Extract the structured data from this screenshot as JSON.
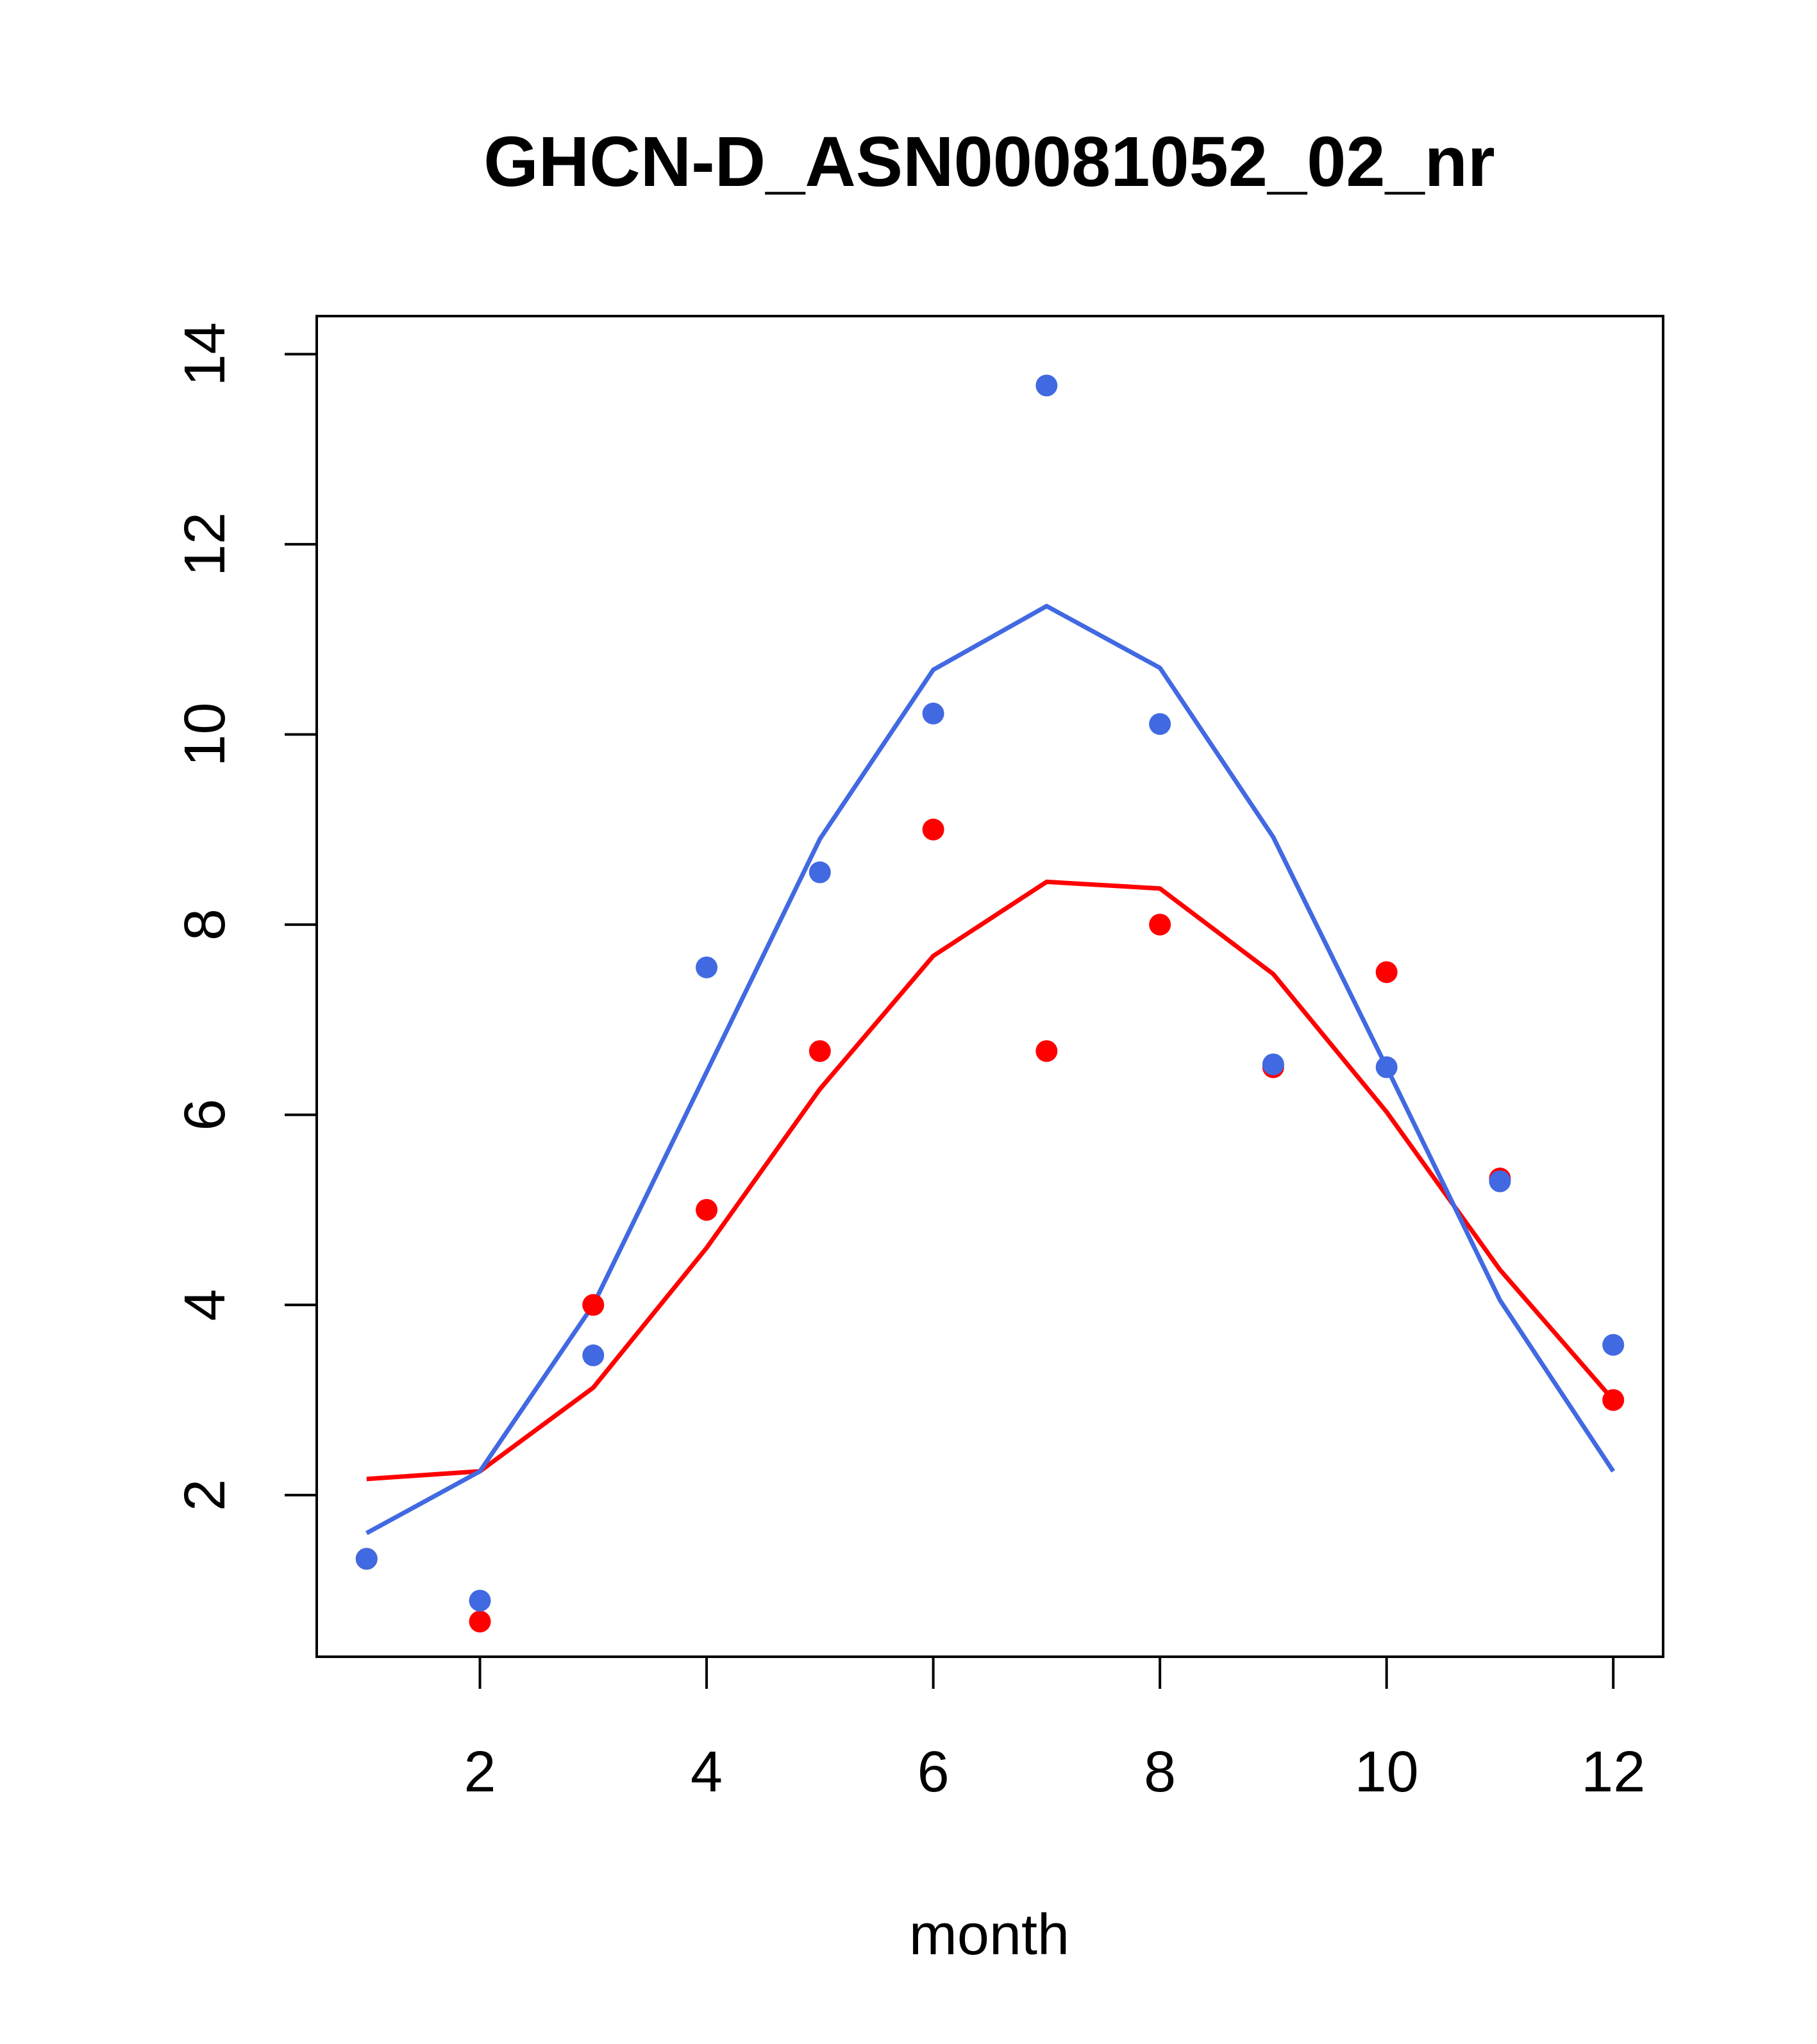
{
  "chart_data": {
    "type": "scatter",
    "title": "GHCN-D_ASN00081052_02_nr",
    "xlabel": "month",
    "ylabel": "",
    "xlim": [
      0.56,
      12.44
    ],
    "ylim": [
      0.3,
      14.4
    ],
    "x_ticks": [
      2,
      4,
      6,
      8,
      10,
      12
    ],
    "y_ticks": [
      2,
      4,
      6,
      8,
      10,
      12,
      14
    ],
    "grid": false,
    "colors": {
      "red": "#ff0000",
      "blue": "#4169e1"
    },
    "series": [
      {
        "color": "#ff0000",
        "points": [
          [
            1,
            1.33
          ],
          [
            2,
            0.67
          ],
          [
            3,
            4.0
          ],
          [
            4,
            5.0
          ],
          [
            5,
            6.67
          ],
          [
            6,
            9.0
          ],
          [
            7,
            6.67
          ],
          [
            8,
            8.0
          ],
          [
            9,
            6.5
          ],
          [
            10,
            7.5
          ],
          [
            11,
            5.33
          ],
          [
            12,
            3.0
          ]
        ],
        "line": [
          [
            1,
            2.17
          ],
          [
            2,
            2.25
          ],
          [
            3,
            3.13
          ],
          [
            4,
            4.6
          ],
          [
            5,
            6.27
          ],
          [
            6,
            7.67
          ],
          [
            7,
            8.45
          ],
          [
            8,
            8.38
          ],
          [
            9,
            7.48
          ],
          [
            10,
            6.03
          ],
          [
            11,
            4.37
          ],
          [
            12,
            3.0
          ]
        ]
      },
      {
        "color": "#4169e1",
        "points": [
          [
            1,
            1.33
          ],
          [
            2,
            0.89
          ],
          [
            3,
            3.47
          ],
          [
            4,
            7.55
          ],
          [
            5,
            8.55
          ],
          [
            6,
            10.22
          ],
          [
            7,
            13.67
          ],
          [
            8,
            10.11
          ],
          [
            9,
            6.53
          ],
          [
            10,
            6.5
          ],
          [
            11,
            5.3
          ],
          [
            12,
            3.58
          ]
        ],
        "line": [
          [
            1,
            1.6
          ],
          [
            2,
            2.25
          ],
          [
            3,
            4.0
          ],
          [
            4,
            6.45
          ],
          [
            5,
            8.9
          ],
          [
            6,
            10.68
          ],
          [
            7,
            11.35
          ],
          [
            8,
            10.7
          ],
          [
            9,
            8.92
          ],
          [
            10,
            6.5
          ],
          [
            11,
            4.05
          ],
          [
            12,
            2.25
          ]
        ]
      }
    ]
  }
}
